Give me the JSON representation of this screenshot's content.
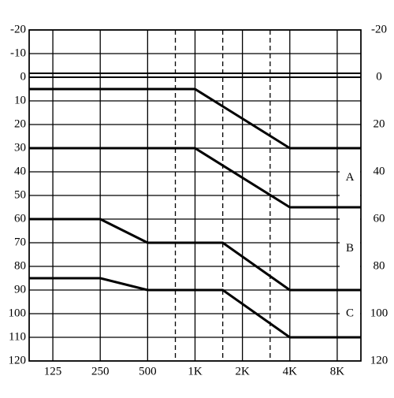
{
  "chart_data": {
    "type": "line",
    "xscale": "log",
    "xlim": [
      88.4,
      11314
    ],
    "xticks": [
      {
        "value": 125,
        "label": "125"
      },
      {
        "value": 250,
        "label": "250"
      },
      {
        "value": 500,
        "label": "500"
      },
      {
        "value": 1000,
        "label": "1K"
      },
      {
        "value": 2000,
        "label": "2K"
      },
      {
        "value": 4000,
        "label": "4K"
      },
      {
        "value": 8000,
        "label": "8K"
      }
    ],
    "xminor": [
      750,
      1500,
      3000
    ],
    "ylim": [
      -20,
      120
    ],
    "yreversed": true,
    "yticks": [
      -20,
      -10,
      0,
      10,
      20,
      30,
      40,
      50,
      60,
      70,
      80,
      90,
      100,
      110,
      120
    ],
    "y2lim": [
      -20,
      120
    ],
    "y2ticks": [
      -20,
      0,
      20,
      40,
      60,
      80,
      100,
      120
    ],
    "grid": true,
    "series": [
      {
        "color": "#000000",
        "x": [
          88.4,
          1000,
          4000,
          11314
        ],
        "values": [
          5,
          5,
          30,
          30
        ]
      },
      {
        "color": "#000000",
        "x": [
          88.4,
          1000,
          4000,
          11314
        ],
        "values": [
          30,
          30,
          55,
          55
        ]
      },
      {
        "color": "#000000",
        "x": [
          88.4,
          250,
          500,
          1500,
          4000,
          11314
        ],
        "values": [
          60,
          60,
          70,
          70,
          90,
          90
        ]
      },
      {
        "color": "#000000",
        "x": [
          88.4,
          250,
          500,
          1500,
          4000,
          11314
        ],
        "values": [
          85,
          85,
          90,
          90,
          110,
          110
        ]
      }
    ],
    "annotations": [
      {
        "text": "A"
      },
      {
        "text": "B"
      },
      {
        "text": "C"
      }
    ]
  }
}
